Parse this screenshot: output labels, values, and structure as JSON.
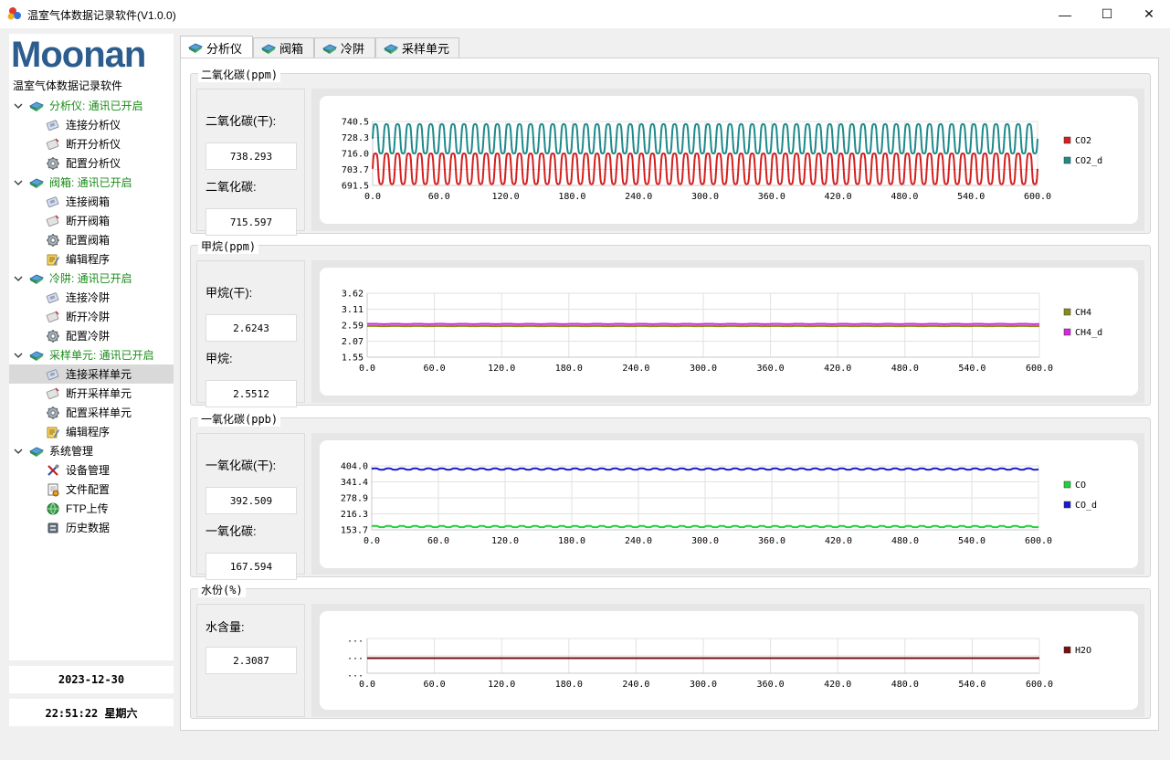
{
  "window": {
    "title": "温室气体数据记录软件(V1.0.0)",
    "minimize_glyph": "—",
    "maximize_glyph": "☐",
    "close_glyph": "✕"
  },
  "sidebar": {
    "logo_text": "Moonan",
    "tree_caption": "温室气体数据记录软件",
    "groups": [
      {
        "label": "分析仪: 通讯已开启",
        "icon": "device-group-icon",
        "status_color": "#1a8c1a",
        "items": [
          {
            "label": "连接分析仪",
            "icon": "connect-icon"
          },
          {
            "label": "断开分析仪",
            "icon": "disconnect-icon"
          },
          {
            "label": "配置分析仪",
            "icon": "gear-icon"
          }
        ]
      },
      {
        "label": "阀箱: 通讯已开启",
        "icon": "device-group-icon",
        "status_color": "#1a8c1a",
        "items": [
          {
            "label": "连接阀箱",
            "icon": "connect-icon"
          },
          {
            "label": "断开阀箱",
            "icon": "disconnect-icon"
          },
          {
            "label": "配置阀箱",
            "icon": "gear-icon"
          },
          {
            "label": "编辑程序",
            "icon": "edit-program-icon"
          }
        ]
      },
      {
        "label": "冷阱: 通讯已开启",
        "icon": "device-group-icon",
        "status_color": "#1a8c1a",
        "items": [
          {
            "label": "连接冷阱",
            "icon": "connect-icon"
          },
          {
            "label": "断开冷阱",
            "icon": "disconnect-icon"
          },
          {
            "label": "配置冷阱",
            "icon": "gear-icon"
          }
        ]
      },
      {
        "label": "采样单元: 通讯已开启",
        "icon": "device-group-icon",
        "status_color": "#1a8c1a",
        "items": [
          {
            "label": "连接采样单元",
            "icon": "connect-icon",
            "selected": true
          },
          {
            "label": "断开采样单元",
            "icon": "disconnect-icon"
          },
          {
            "label": "配置采样单元",
            "icon": "gear-icon"
          },
          {
            "label": "编辑程序",
            "icon": "edit-program-icon"
          }
        ]
      },
      {
        "label": "系统管理",
        "icon": "device-group-icon",
        "status_color": "#000000",
        "items": [
          {
            "label": "设备管理",
            "icon": "tools-icon"
          },
          {
            "label": "文件配置",
            "icon": "file-config-icon"
          },
          {
            "label": "FTP上传",
            "icon": "globe-icon"
          },
          {
            "label": "历史数据",
            "icon": "database-icon"
          }
        ]
      }
    ],
    "date": "2023-12-30",
    "time": "22:51:22 星期六"
  },
  "tabs": [
    {
      "label": "分析仪",
      "active": true
    },
    {
      "label": "阀箱"
    },
    {
      "label": "冷阱"
    },
    {
      "label": "采样单元"
    }
  ],
  "panels": [
    {
      "title": "二氧化碳(ppm)",
      "readouts": [
        {
          "label": "二氧化碳(干):",
          "value": "738.293"
        },
        {
          "label": "二氧化碳:",
          "value": "715.597"
        }
      ],
      "chart_data": {
        "type": "line",
        "x_ticks": [
          "0.0",
          "60.0",
          "120.0",
          "180.0",
          "240.0",
          "300.0",
          "360.0",
          "420.0",
          "480.0",
          "540.0",
          "600.0"
        ],
        "y_ticks": [
          "740.5",
          "728.3",
          "716.0",
          "703.7",
          "691.5"
        ],
        "xlim": [
          0,
          600
        ],
        "ylim": [
          691.5,
          740.5
        ],
        "grid": true,
        "legend": "right",
        "series": [
          {
            "name": "CO2",
            "color": "#d42020",
            "wave": {
              "min": 692.5,
              "max": 716.0,
              "period": 10
            }
          },
          {
            "name": "CO2_d",
            "color": "#1f8a8a",
            "wave": {
              "min": 716.0,
              "max": 738.5,
              "period": 10
            }
          }
        ]
      }
    },
    {
      "title": "甲烷(ppm)",
      "readouts": [
        {
          "label": "甲烷(干):",
          "value": "2.6243"
        },
        {
          "label": "甲烷:",
          "value": "2.5512"
        }
      ],
      "chart_data": {
        "type": "line",
        "x_ticks": [
          "0.0",
          "60.0",
          "120.0",
          "180.0",
          "240.0",
          "300.0",
          "360.0",
          "420.0",
          "480.0",
          "540.0",
          "600.0"
        ],
        "y_ticks": [
          "3.62",
          "3.11",
          "2.59",
          "2.07",
          "1.55"
        ],
        "xlim": [
          0,
          600
        ],
        "ylim": [
          1.55,
          3.62
        ],
        "grid": true,
        "legend": "right",
        "series": [
          {
            "name": "CH4",
            "color": "#8a8a1a",
            "wave": {
              "min": 2.55,
              "max": 2.56,
              "period": 20
            }
          },
          {
            "name": "CH4_d",
            "color": "#d42adb",
            "wave": {
              "min": 2.62,
              "max": 2.63,
              "period": 20
            }
          }
        ]
      }
    },
    {
      "title": "一氧化碳(ppb)",
      "readouts": [
        {
          "label": "一氧化碳(干):",
          "value": "392.509"
        },
        {
          "label": "一氧化碳:",
          "value": "167.594"
        }
      ],
      "chart_data": {
        "type": "line",
        "x_ticks": [
          "0.0",
          "60.0",
          "120.0",
          "180.0",
          "240.0",
          "300.0",
          "360.0",
          "420.0",
          "480.0",
          "540.0",
          "600.0"
        ],
        "y_ticks": [
          "404.0",
          "341.4",
          "278.9",
          "216.3",
          "153.7"
        ],
        "xlim": [
          0,
          600
        ],
        "ylim": [
          153.7,
          404.0
        ],
        "grid": true,
        "legend": "right",
        "series": [
          {
            "name": "CO",
            "color": "#22d03a",
            "wave": {
              "min": 164.0,
              "max": 169.0,
              "period": 12
            }
          },
          {
            "name": "CO_d",
            "color": "#1a1ad0",
            "wave": {
              "min": 389.0,
              "max": 394.0,
              "period": 12
            }
          }
        ]
      }
    },
    {
      "title": "水份(%)",
      "readouts": [
        {
          "label": "水含量:",
          "value": "2.3087"
        }
      ],
      "chart_data": {
        "type": "line",
        "x_ticks": [
          "0.0",
          "60.0",
          "120.0",
          "180.0",
          "240.0",
          "300.0",
          "360.0",
          "420.0",
          "480.0",
          "540.0",
          "600.0"
        ],
        "y_ticks": [
          "...",
          "...",
          "..."
        ],
        "xlim": [
          0,
          600
        ],
        "ylim": [
          2.3,
          2.32
        ],
        "grid": true,
        "legend": "right",
        "series": [
          {
            "name": "H2O",
            "color": "#7a0f0f",
            "wave": {
              "min": 2.3087,
              "max": 2.3087,
              "period": 20
            }
          }
        ]
      }
    }
  ]
}
